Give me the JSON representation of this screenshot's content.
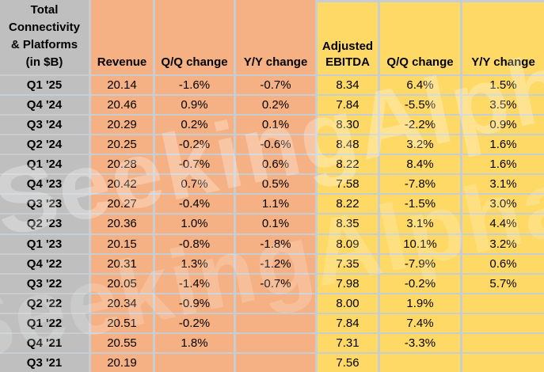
{
  "watermark": {
    "text": "SeekingAlpha"
  },
  "colors": {
    "label_bg": "#bfbfbf",
    "revenue_section_bg": "#f5b183",
    "ebitda_section_bg": "#ffd966",
    "gridline": "#c8cdd2",
    "text": "#000000"
  },
  "chart_data": {
    "type": "table",
    "title": "Total Connectivity & Platforms (in $B)",
    "corner_label_lines": [
      "Total",
      "Connectivity",
      "& Platforms",
      "(in $B)"
    ],
    "column_headers": [
      "Revenue",
      "Q/Q change",
      "Y/Y change",
      "Adjusted EBITDA",
      "Q/Q change",
      "Y/Y change"
    ],
    "rows": [
      {
        "quarter": "Q1 '25",
        "values": [
          "20.14",
          "-1.6%",
          "-0.7%",
          "8.34",
          "6.4%",
          "1.5%"
        ]
      },
      {
        "quarter": "Q4 '24",
        "values": [
          "20.46",
          "0.9%",
          "0.2%",
          "7.84",
          "-5.5%",
          "3.5%"
        ]
      },
      {
        "quarter": "Q3 '24",
        "values": [
          "20.29",
          "0.2%",
          "0.1%",
          "8.30",
          "-2.2%",
          "0.9%"
        ]
      },
      {
        "quarter": "Q2 '24",
        "values": [
          "20.25",
          "-0.2%",
          "-0.6%",
          "8.48",
          "3.2%",
          "1.6%"
        ]
      },
      {
        "quarter": "Q1 '24",
        "values": [
          "20.28",
          "-0.7%",
          "0.6%",
          "8.22",
          "8.4%",
          "1.6%"
        ]
      },
      {
        "quarter": "Q4 '23",
        "values": [
          "20.42",
          "0.7%",
          "0.5%",
          "7.58",
          "-7.8%",
          "3.1%"
        ]
      },
      {
        "quarter": "Q3 '23",
        "values": [
          "20.27",
          "-0.4%",
          "1.1%",
          "8.22",
          "-1.5%",
          "3.0%"
        ]
      },
      {
        "quarter": "Q2 '23",
        "values": [
          "20.36",
          "1.0%",
          "0.1%",
          "8.35",
          "3.1%",
          "4.4%"
        ]
      },
      {
        "quarter": "Q1 '23",
        "values": [
          "20.15",
          "-0.8%",
          "-1.8%",
          "8.09",
          "10.1%",
          "3.2%"
        ]
      },
      {
        "quarter": "Q4 '22",
        "values": [
          "20.31",
          "1.3%",
          "-1.2%",
          "7.35",
          "-7.9%",
          "0.6%"
        ]
      },
      {
        "quarter": "Q3 '22",
        "values": [
          "20.05",
          "-1.4%",
          "-0.7%",
          "7.98",
          "-0.2%",
          "5.7%"
        ]
      },
      {
        "quarter": "Q2 '22",
        "values": [
          "20.34",
          "-0.9%",
          "",
          "8.00",
          "1.9%",
          ""
        ]
      },
      {
        "quarter": "Q1 '22",
        "values": [
          "20.51",
          "-0.2%",
          "",
          "7.84",
          "7.4%",
          ""
        ]
      },
      {
        "quarter": "Q4 '21",
        "values": [
          "20.55",
          "1.8%",
          "",
          "7.31",
          "-3.3%",
          ""
        ]
      },
      {
        "quarter": "Q3 '21",
        "values": [
          "20.19",
          "",
          "",
          "7.56",
          "",
          ""
        ]
      }
    ]
  }
}
